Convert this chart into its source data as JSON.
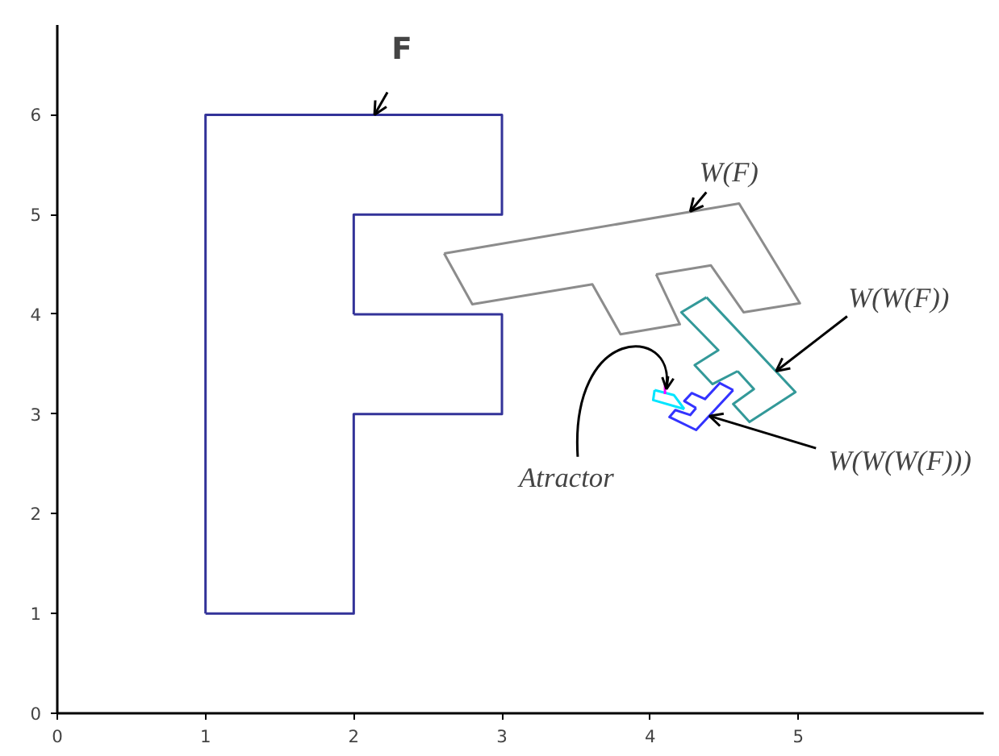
{
  "chart_data": {
    "type": "line",
    "xlim": [
      0,
      6.25
    ],
    "ylim": [
      0,
      6.9
    ],
    "xticks": [
      0,
      1,
      2,
      3,
      4,
      5
    ],
    "yticks": [
      0,
      1,
      2,
      3,
      4,
      5,
      6
    ],
    "grid": false,
    "line_style": "solid",
    "series": [
      {
        "color": "#333399",
        "x": [
          1,
          1,
          3,
          3,
          2,
          2
        ],
        "values": [
          1,
          6,
          6,
          5,
          5,
          4
        ]
      },
      {
        "color": "#333399",
        "x": [
          2,
          3,
          3,
          2,
          2,
          1
        ],
        "values": [
          4,
          4,
          3,
          3,
          1,
          1
        ]
      },
      {
        "color": "#8c8c8c",
        "x": [
          2.61,
          4.6,
          5.01,
          4.63,
          4.41,
          4.04
        ],
        "values": [
          4.61,
          5.11,
          4.11,
          4.02,
          4.49,
          4.4
        ]
      },
      {
        "color": "#8c8c8c",
        "x": [
          4.04,
          4.2,
          3.8,
          3.61,
          2.8,
          2.61
        ],
        "values": [
          4.4,
          3.9,
          3.8,
          4.3,
          4.1,
          4.61
        ]
      },
      {
        "color": "#339999",
        "x": [
          4.38,
          4.98,
          4.67,
          4.56,
          4.7,
          4.59
        ],
        "values": [
          4.17,
          3.22,
          2.92,
          3.1,
          3.25,
          3.43
        ]
      },
      {
        "color": "#339999",
        "x": [
          4.59,
          4.42,
          4.3,
          4.46,
          4.21,
          4.38
        ],
        "values": [
          3.43,
          3.3,
          3.49,
          3.64,
          4.02,
          4.17
        ]
      },
      {
        "color": "#3333ff",
        "x": [
          4.56,
          4.31,
          4.13,
          4.17,
          4.27,
          4.31
        ],
        "values": [
          3.24,
          2.84,
          2.97,
          3.04,
          2.99,
          3.06
        ]
      },
      {
        "color": "#3333ff",
        "x": [
          4.31,
          4.23,
          4.28,
          4.37,
          4.47,
          4.56
        ],
        "values": [
          3.06,
          3.13,
          3.21,
          3.15,
          3.31,
          3.24
        ]
      },
      {
        "color": "#00e5ff",
        "x": [
          4.23,
          4.02,
          4.03
        ],
        "values": [
          3.05,
          3.14,
          3.24
        ]
      },
      {
        "color": "#00e5ff",
        "x": [
          4.03,
          4.16,
          4.23
        ],
        "values": [
          3.24,
          3.19,
          3.05
        ]
      },
      {
        "color": "#ff00ff",
        "x": [
          4.1,
          4.1
        ],
        "values": [
          3.2,
          3.31
        ]
      }
    ],
    "annotations": [
      {
        "text": "F",
        "x": 2.14,
        "y": 6
      },
      {
        "text": "W(F)",
        "x": 4.27,
        "y": 5.03
      },
      {
        "text": "W(W(F))",
        "x": 4.85,
        "y": 3.43
      },
      {
        "text": "W(W(W(F)))",
        "x": 4.4,
        "y": 2.98
      },
      {
        "text": "Atractor",
        "x": 4.11,
        "y": 3.25
      }
    ]
  }
}
